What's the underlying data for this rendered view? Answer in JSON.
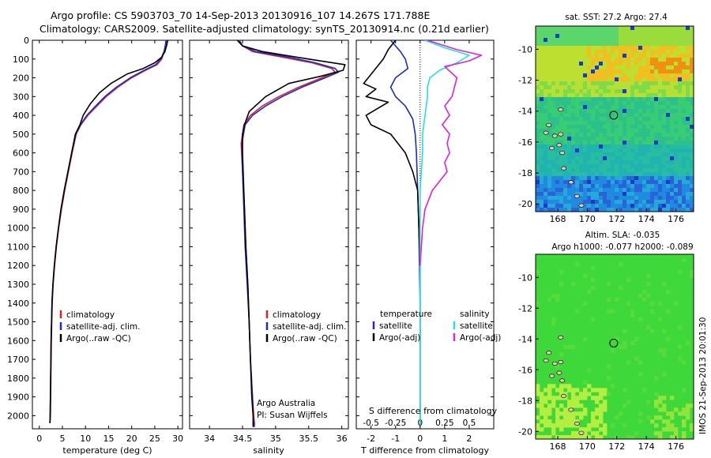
{
  "header": {
    "line1": "Argo profile: CS 5903703_70 14-Sep-2013 20130916_107 14.267S 171.788E",
    "line2": "Climatology: CARS2009. Satellite-adjusted climatology: synTS_20130914.nc (0.21d earlier)"
  },
  "colors": {
    "climatology": "#e02020",
    "satellite": "#1a2ad8",
    "argo": "#000000",
    "sal_satellite": "#20e0e8",
    "sal_argo": "#e020e0"
  },
  "chart_data": [
    {
      "type": "line",
      "xlabel": "temperature (deg C)",
      "ylim": [
        2070,
        0
      ],
      "xlim": [
        -1.5,
        31
      ],
      "xticks": [
        0,
        5,
        10,
        15,
        20,
        25,
        30
      ],
      "yticks": [
        0,
        100,
        200,
        300,
        400,
        500,
        600,
        700,
        800,
        900,
        1000,
        1100,
        1200,
        1300,
        1400,
        1500,
        1600,
        1700,
        1800,
        1900,
        2000
      ],
      "legend": [
        "climatology",
        "satellite-adj. clim.",
        "Argo(..raw -QC)"
      ],
      "series": [
        {
          "name": "climatology",
          "color": "#e02020",
          "x": [
            27.5,
            27.4,
            27,
            26.5,
            25.5,
            23,
            20,
            17,
            14.5,
            12.5,
            10.5,
            9,
            8,
            7.1,
            6.3,
            5.5,
            4.8,
            4.2,
            3.7,
            3.3,
            3,
            2.8,
            2.6,
            2.5,
            2.4,
            2.3
          ],
          "y": [
            0,
            25,
            60,
            100,
            130,
            160,
            200,
            250,
            300,
            350,
            400,
            450,
            500,
            600,
            700,
            800,
            900,
            1000,
            1100,
            1200,
            1300,
            1400,
            1600,
            1800,
            2000,
            2040
          ]
        },
        {
          "name": "satellite-adj. clim.",
          "color": "#1a2ad8",
          "x": [
            27.4,
            27.3,
            27,
            26.3,
            25.2,
            22.7,
            19.7,
            16.7,
            14.2,
            12.2,
            10.3,
            8.9,
            7.9,
            7,
            6.2,
            5.4,
            4.7,
            4.15,
            3.65,
            3.25,
            2.95,
            2.75,
            2.55,
            2.45,
            2.35,
            2.3
          ],
          "y": [
            0,
            25,
            60,
            100,
            130,
            160,
            200,
            250,
            300,
            350,
            400,
            450,
            500,
            600,
            700,
            800,
            900,
            1000,
            1100,
            1200,
            1300,
            1400,
            1600,
            1800,
            2000,
            2040
          ]
        },
        {
          "name": "Argo(..raw -QC)",
          "color": "#000000",
          "x": [
            27.8,
            27.6,
            27.2,
            26.5,
            25,
            22.5,
            19,
            15.5,
            13,
            11,
            9.5,
            8.8,
            7.8,
            7,
            6.2,
            5.4,
            4.7,
            4.15,
            3.65,
            3.25,
            2.95,
            2.75,
            2.55,
            2.45,
            2.35,
            2.3
          ],
          "y": [
            0,
            25,
            60,
            90,
            120,
            150,
            180,
            230,
            280,
            340,
            400,
            450,
            500,
            600,
            700,
            800,
            900,
            1000,
            1100,
            1200,
            1300,
            1400,
            1600,
            1800,
            2000,
            2040
          ]
        }
      ]
    },
    {
      "type": "line",
      "xlabel": "salinity",
      "ylim": [
        2070,
        0
      ],
      "xlim": [
        33.7,
        36.1
      ],
      "xticks": [
        34,
        34.5,
        35,
        35.5,
        36
      ],
      "xticklabels": [
        "34",
        "34.5",
        "35",
        "35.5",
        "36"
      ],
      "legend": [
        "climatology",
        "satellite-adj. clim.",
        "Argo(..raw -QC)"
      ],
      "annotation": [
        "Argo Australia",
        "PI: Susan Wijffels"
      ],
      "series": [
        {
          "name": "climatology",
          "color": "#e02020",
          "x": [
            34.45,
            34.5,
            34.65,
            35.1,
            35.55,
            35.85,
            35.9,
            35.7,
            35.35,
            35.05,
            34.8,
            34.62,
            34.52,
            34.48,
            34.5,
            34.53,
            34.55,
            34.58,
            34.6,
            34.62,
            34.65,
            34.67,
            34.68,
            34.68
          ],
          "y": [
            0,
            30,
            60,
            90,
            120,
            150,
            170,
            200,
            250,
            300,
            350,
            400,
            450,
            550,
            700,
            900,
            1100,
            1300,
            1500,
            1700,
            1900,
            2000,
            2040,
            2060
          ]
        },
        {
          "name": "satellite-adj. clim.",
          "color": "#1a2ad8",
          "x": [
            34.45,
            34.5,
            34.7,
            35.2,
            35.6,
            35.9,
            35.95,
            35.75,
            35.4,
            35.1,
            34.85,
            34.65,
            34.54,
            34.49,
            34.5,
            34.52,
            34.54,
            34.57,
            34.6,
            34.62,
            34.65,
            34.66,
            34.67,
            34.67
          ],
          "y": [
            0,
            30,
            60,
            90,
            120,
            150,
            170,
            200,
            250,
            300,
            350,
            400,
            450,
            550,
            700,
            900,
            1100,
            1300,
            1500,
            1700,
            1900,
            2000,
            2040,
            2060
          ]
        },
        {
          "name": "Argo(..raw -QC)",
          "color": "#000000",
          "x": [
            34.42,
            34.5,
            34.8,
            35.5,
            36.05,
            36.02,
            35.7,
            35.2,
            34.85,
            34.6,
            34.53,
            34.5,
            34.5,
            34.51,
            34.53,
            34.55,
            34.58,
            34.6,
            34.62,
            34.64,
            34.66,
            34.66,
            34.66
          ],
          "y": [
            0,
            30,
            60,
            100,
            130,
            160,
            190,
            230,
            300,
            380,
            450,
            500,
            600,
            700,
            900,
            1100,
            1300,
            1500,
            1700,
            1900,
            2000,
            2040,
            2060
          ]
        }
      ]
    },
    {
      "type": "line",
      "xlabel": "T difference from climatology",
      "xlabel2": "S difference from climatology",
      "ylim": [
        2070,
        0
      ],
      "xlim": [
        -2.6,
        3
      ],
      "xticks": [
        -2,
        -1,
        0,
        1,
        2
      ],
      "topticks": [
        -0.5,
        -0.25,
        0,
        0.25,
        0.5
      ],
      "topticklabels": [
        "-0.5",
        "-0.25",
        "0",
        "0.25",
        "0.5"
      ],
      "legend": {
        "temperature": "temperature",
        "salinity": "salinity",
        "t_sat": "satellite",
        "t_argo": "Argo(-adj)",
        "s_sat": "satellite",
        "s_argo": "Argo(-adj)"
      },
      "series": [
        {
          "name": "T satellite",
          "color": "#1a2ad8",
          "x": [
            -1.2,
            -0.8,
            -0.6,
            -0.5,
            -1,
            -1.2,
            -1,
            -0.6,
            -0.3,
            -0.2,
            -0.15,
            -0.1,
            -0.05,
            0,
            0,
            0
          ],
          "y": [
            0,
            60,
            100,
            150,
            200,
            250,
            300,
            350,
            420,
            500,
            600,
            800,
            1000,
            1400,
            1800,
            2050
          ]
        },
        {
          "name": "T argo",
          "color": "#000000",
          "x": [
            -1,
            -1.3,
            -1.5,
            -2.3,
            -1.8,
            -2.2,
            -1.3,
            -2.2,
            -2,
            -1.2,
            -0.6,
            -0.3,
            -0.1,
            0,
            0,
            0
          ],
          "y": [
            0,
            50,
            100,
            230,
            260,
            300,
            330,
            400,
            450,
            500,
            600,
            700,
            800,
            1200,
            1800,
            2050
          ]
        },
        {
          "name": "S satellite",
          "color": "#20e0e8",
          "x": [
            0.2,
            1,
            2,
            1.5,
            0.8,
            0.4,
            0.3,
            0.3,
            0.2,
            0.1,
            0.1,
            0,
            0,
            0
          ],
          "y": [
            0,
            40,
            80,
            120,
            160,
            200,
            250,
            300,
            400,
            500,
            600,
            800,
            1200,
            2050
          ]
        },
        {
          "name": "S argo",
          "color": "#e020e0",
          "x": [
            0.3,
            1.5,
            2.5,
            2,
            1,
            1.5,
            1.3,
            1,
            1.2,
            0.9,
            1.2,
            1.1,
            1.2,
            1,
            1.1,
            0.5,
            0.2,
            0.1,
            0
          ],
          "y": [
            0,
            50,
            80,
            110,
            140,
            200,
            300,
            350,
            400,
            450,
            500,
            550,
            600,
            650,
            700,
            800,
            900,
            1000,
            1200
          ]
        }
      ]
    },
    {
      "type": "heatmap",
      "title": "sat. SST: 27.2  Argo: 27.4",
      "xticks": [
        168,
        170,
        172,
        174,
        176
      ],
      "yticks": [
        -10,
        -12,
        -14,
        -16,
        -18,
        -20
      ],
      "xlim": [
        166.5,
        177.2
      ],
      "ylim": [
        -20.5,
        -8.5
      ]
    },
    {
      "type": "heatmap",
      "title": "Altim. SLA: -0.035",
      "subtitle": "Argo h1000: -0.077  h2000: -0.089",
      "xticks": [
        168,
        170,
        172,
        174,
        176
      ],
      "yticks": [
        -10,
        -12,
        -14,
        -16,
        -18,
        -20
      ],
      "xlim": [
        166.5,
        177.2
      ],
      "ylim": [
        -20.5,
        -8.5
      ]
    }
  ],
  "stamp": "IMOS 21-Sep-2013 20:01:30"
}
